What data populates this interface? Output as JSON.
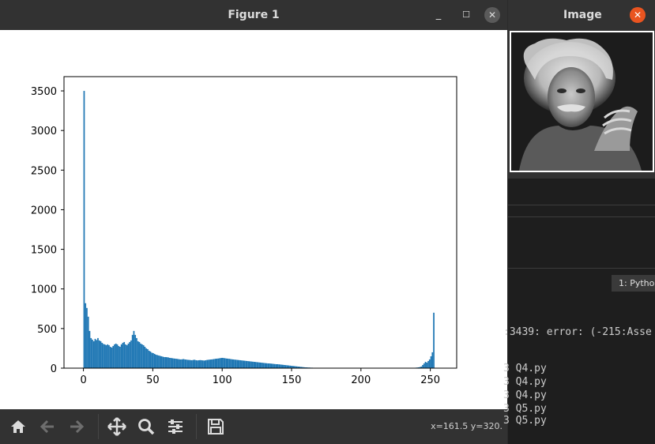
{
  "figure_window": {
    "title": "Figure 1",
    "min_label": "_",
    "max_label": "☐",
    "close_label": "✕"
  },
  "toolbar": {
    "coords": "x=161.5 y=320.",
    "buttons": [
      "home-icon",
      "back-arrow-icon",
      "forward-arrow-icon",
      "pan-icon",
      "zoom-icon",
      "configure-subplots-icon",
      "save-icon"
    ]
  },
  "image_window": {
    "title": "Image",
    "close_label": "✕"
  },
  "terminal": {
    "tab_label": "1: Pytho",
    "lines": [
      ":3439: error: (-215:Asse",
      "3 Q4.py",
      "3 Q4.py",
      "3 Q4.py",
      "3 Q5.py",
      "3 Q5.py"
    ]
  },
  "colors": {
    "bar": "#1f77b4",
    "titlebar": "#323232",
    "close_accent": "#e95420"
  },
  "chart_data": {
    "type": "bar",
    "title": "",
    "xlabel": "",
    "ylabel": "",
    "xlim": [
      -14,
      269
    ],
    "ylim": [
      0,
      3680
    ],
    "xticks": [
      0,
      50,
      100,
      150,
      200,
      250
    ],
    "yticks": [
      0,
      500,
      1000,
      1500,
      2000,
      2500,
      3000,
      3500
    ],
    "grid": false,
    "legend": "none",
    "bins": 256,
    "values": [
      3500,
      820,
      760,
      650,
      470,
      380,
      360,
      340,
      370,
      355,
      380,
      350,
      340,
      320,
      305,
      300,
      290,
      300,
      290,
      270,
      260,
      280,
      300,
      310,
      300,
      280,
      270,
      300,
      320,
      330,
      300,
      290,
      310,
      330,
      350,
      420,
      470,
      420,
      380,
      340,
      330,
      310,
      300,
      290,
      270,
      250,
      240,
      220,
      210,
      195,
      190,
      180,
      170,
      165,
      160,
      155,
      150,
      145,
      140,
      140,
      138,
      135,
      130,
      128,
      125,
      122,
      120,
      118,
      115,
      112,
      110,
      112,
      115,
      110,
      108,
      105,
      104,
      102,
      100,
      104,
      106,
      100,
      98,
      100,
      102,
      100,
      98,
      96,
      100,
      104,
      106,
      108,
      110,
      112,
      115,
      118,
      120,
      122,
      125,
      128,
      130,
      128,
      125,
      122,
      120,
      118,
      115,
      112,
      110,
      108,
      106,
      104,
      102,
      100,
      98,
      96,
      94,
      92,
      90,
      88,
      86,
      84,
      82,
      80,
      78,
      76,
      74,
      72,
      70,
      68,
      66,
      64,
      62,
      60,
      60,
      58,
      56,
      54,
      52,
      50,
      50,
      48,
      46,
      44,
      42,
      40,
      38,
      36,
      34,
      32,
      30,
      28,
      26,
      24,
      22,
      20,
      18,
      16,
      14,
      12,
      10,
      10,
      8,
      8,
      6,
      6,
      5,
      5,
      4,
      4,
      3,
      3,
      3,
      2,
      2,
      2,
      2,
      2,
      1,
      1,
      1,
      1,
      1,
      1,
      1,
      1,
      1,
      1,
      1,
      1,
      1,
      1,
      1,
      1,
      1,
      1,
      1,
      1,
      1,
      1,
      1,
      1,
      1,
      1,
      1,
      1,
      1,
      1,
      1,
      1,
      1,
      1,
      1,
      1,
      1,
      1,
      1,
      1,
      1,
      1,
      1,
      1,
      1,
      1,
      1,
      1,
      1,
      1,
      1,
      1,
      1,
      1,
      1,
      1,
      1,
      2,
      2,
      3,
      4,
      5,
      6,
      8,
      10,
      14,
      20,
      40,
      60,
      80,
      70,
      90,
      110,
      150,
      200,
      700
    ]
  }
}
